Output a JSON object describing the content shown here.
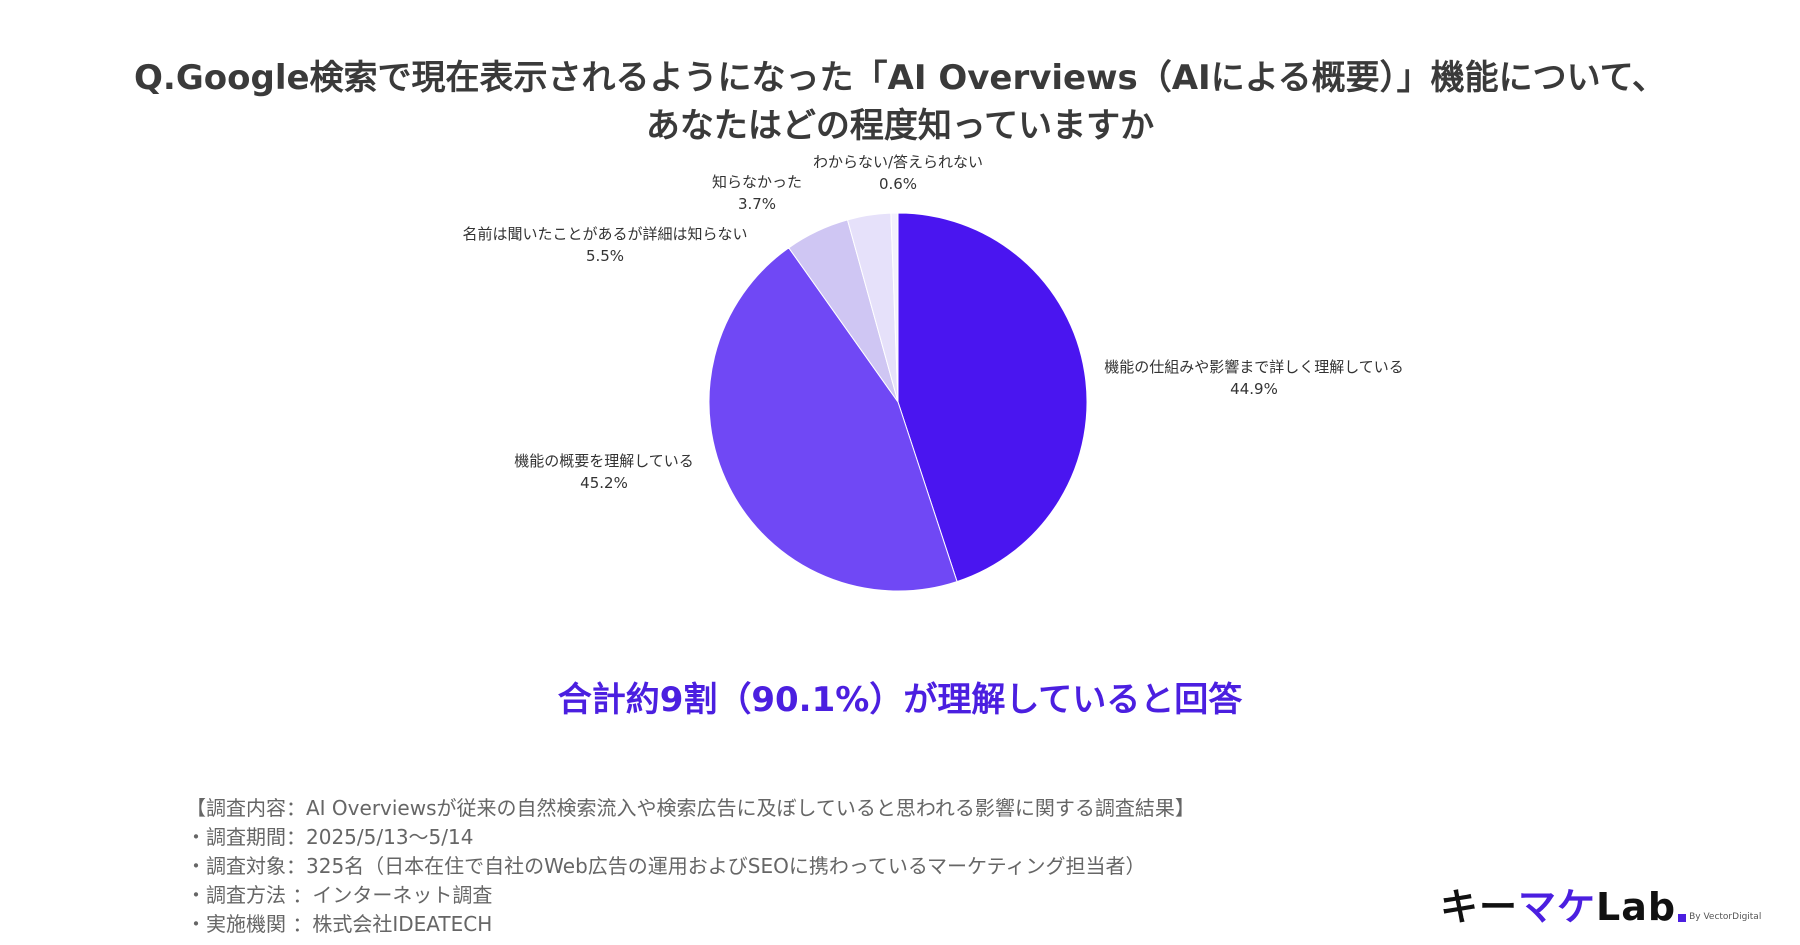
{
  "title": {
    "line1": "Q.Google検索で現在表示されるようになった「AI Overviews（AIによる概要）」機能について、",
    "line2": "あなたはどの程度知っていますか"
  },
  "chart_data": {
    "type": "pie",
    "title": "Q.Google検索で現在表示されるようになった「AI Overviews（AIによる概要）」機能について、あなたはどの程度知っていますか",
    "slices": [
      {
        "label": "機能の仕組みや影響まで詳しく理解している",
        "value": 44.9,
        "display": "44.9%",
        "color": "#4a15f0"
      },
      {
        "label": "機能の概要を理解している",
        "value": 45.2,
        "display": "45.2%",
        "color": "#7048f5"
      },
      {
        "label": "名前は聞いたことがあるが詳細は知らない",
        "value": 5.5,
        "display": "5.5%",
        "color": "#cfc6f3"
      },
      {
        "label": "知らなかった",
        "value": 3.7,
        "display": "3.7%",
        "color": "#e6e1fa"
      },
      {
        "label": "わからない/答えられない",
        "value": 0.6,
        "display": "0.6%",
        "color": "#f3f0fd"
      }
    ],
    "legend": "none"
  },
  "summary": "合計約9割（90.1%）が理解していると回答",
  "notes": [
    "【調査内容：AI Overviewsが従来の自然検索流入や検索広告に及ぼしていると思われる影響に関する調査結果】",
    "・調査期間：2025/5/13〜5/14",
    "・調査対象：325名（日本在住で自社のWeb広告の運用およびSEOに携わっているマーケティング担当者）",
    "・調査方法 ：インターネット調査",
    "・実施機関 ：株式会社IDEATECH"
  ],
  "logo": {
    "part1": "キー",
    "part2": "マケ",
    "part3": "Lab",
    "byline": "By VectorDigital"
  }
}
